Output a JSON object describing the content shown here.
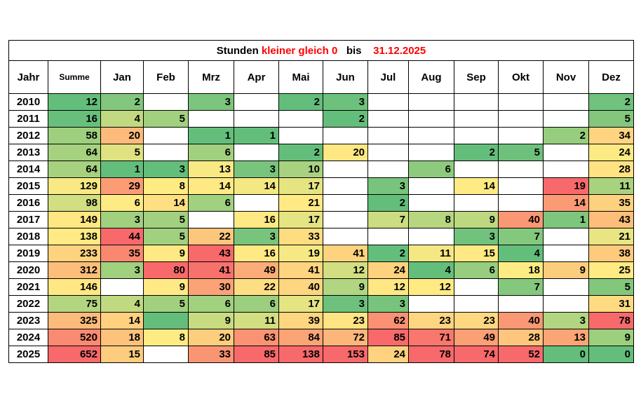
{
  "title": {
    "part1": "Stunden",
    "part2": "kleiner gleich  0",
    "part3": "bis",
    "part4": "31.12.2025"
  },
  "headers": [
    "Jahr",
    "Summe",
    "Jan",
    "Feb",
    "Mrz",
    "Apr",
    "Mai",
    "Jun",
    "Jul",
    "Aug",
    "Sep",
    "Okt",
    "Nov",
    "Dez"
  ],
  "rows": [
    {
      "year": "2010",
      "cells": [
        "12",
        "2",
        "",
        "3",
        "",
        "2",
        "3",
        "",
        "",
        "",
        "",
        "",
        "2"
      ]
    },
    {
      "year": "2011",
      "cells": [
        "16",
        "4",
        "5",
        "",
        "",
        "",
        "2",
        "",
        "",
        "",
        "",
        "",
        "5"
      ]
    },
    {
      "year": "2012",
      "cells": [
        "58",
        "20",
        "",
        "1",
        "1",
        "",
        "",
        "",
        "",
        "",
        "",
        "2",
        "34"
      ]
    },
    {
      "year": "2013",
      "cells": [
        "64",
        "5",
        "",
        "6",
        "",
        "2",
        "20",
        "",
        "",
        "2",
        "5",
        "",
        "24"
      ]
    },
    {
      "year": "2014",
      "cells": [
        "64",
        "1",
        "3",
        "13",
        "3",
        "10",
        "",
        "",
        "6",
        "",
        "",
        "",
        "28"
      ]
    },
    {
      "year": "2015",
      "cells": [
        "129",
        "29",
        "8",
        "14",
        "14",
        "17",
        "",
        "3",
        "",
        "14",
        "",
        "19",
        "11"
      ]
    },
    {
      "year": "2016",
      "cells": [
        "98",
        "6",
        "14",
        "6",
        "",
        "21",
        "",
        "2",
        "",
        "",
        "",
        "14",
        "35"
      ]
    },
    {
      "year": "2017",
      "cells": [
        "149",
        "3",
        "5",
        "",
        "16",
        "17",
        "",
        "7",
        "8",
        "9",
        "40",
        "1",
        "43"
      ]
    },
    {
      "year": "2018",
      "cells": [
        "138",
        "44",
        "5",
        "22",
        "3",
        "33",
        "",
        "",
        "",
        "3",
        "7",
        "",
        "21"
      ]
    },
    {
      "year": "2019",
      "cells": [
        "233",
        "35",
        "9",
        "43",
        "16",
        "19",
        "41",
        "2",
        "11",
        "15",
        "4",
        "",
        "38"
      ]
    },
    {
      "year": "2020",
      "cells": [
        "312",
        "3",
        "80",
        "41",
        "49",
        "41",
        "12",
        "24",
        "4",
        "6",
        "18",
        "9",
        "25"
      ]
    },
    {
      "year": "2021",
      "cells": [
        "146",
        "",
        "9",
        "30",
        "22",
        "40",
        "9",
        "12",
        "12",
        "",
        "7",
        "",
        "5"
      ]
    },
    {
      "year": "2022",
      "cells": [
        "75",
        "4",
        "5",
        "6",
        "6",
        "17",
        "3",
        "3",
        "",
        "",
        "",
        "",
        "31"
      ]
    },
    {
      "year": "2023",
      "cells": [
        "325",
        "14",
        "",
        "9",
        "11",
        "39",
        "23",
        "62",
        "23",
        "23",
        "40",
        "3",
        "78"
      ]
    },
    {
      "year": "2024",
      "cells": [
        "520",
        "18",
        "8",
        "20",
        "63",
        "84",
        "72",
        "85",
        "71",
        "49",
        "28",
        "13",
        "9"
      ]
    },
    {
      "year": "2025",
      "cells": [
        "652",
        "15",
        "",
        "33",
        "85",
        "138",
        "153",
        "24",
        "78",
        "74",
        "52",
        "0",
        "0"
      ]
    }
  ],
  "colors": {
    "low": "#63BE7B",
    "mid": "#FFEB84",
    "high": "#F8696B"
  },
  "cell_color_overrides": [
    {
      "row": 13,
      "col": 2,
      "color": "#63BE7B"
    }
  ]
}
